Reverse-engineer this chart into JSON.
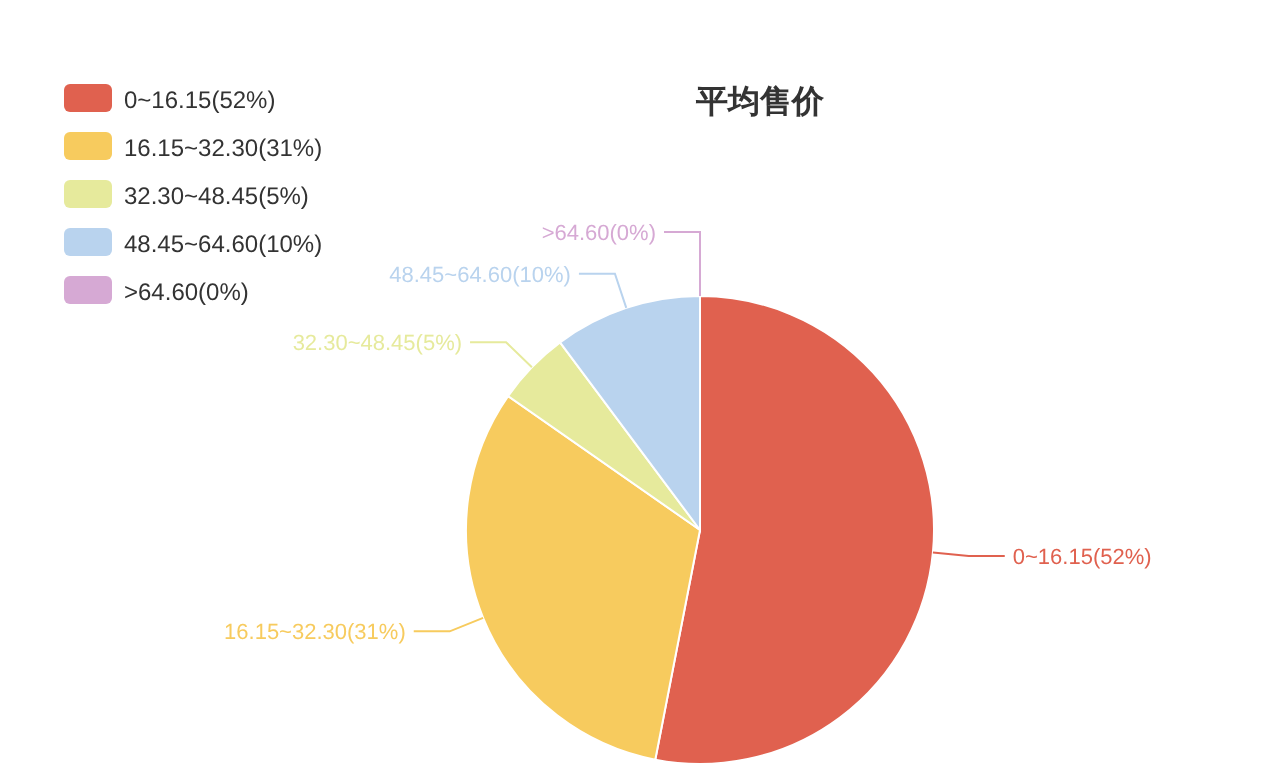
{
  "chart_data": {
    "type": "pie",
    "title": "平均售价",
    "legend": "top left",
    "categories": [
      "0~16.15(52%)",
      "16.15~32.30(31%)",
      "32.30~48.45(5%)",
      "48.45~64.60(10%)",
      ">64.60(0%)"
    ],
    "values": [
      52,
      31,
      5,
      10,
      0
    ],
    "colors": [
      "#e0614f",
      "#f7cb5e",
      "#e6ea9c",
      "#b9d3ee",
      "#d6a9d4"
    ]
  }
}
